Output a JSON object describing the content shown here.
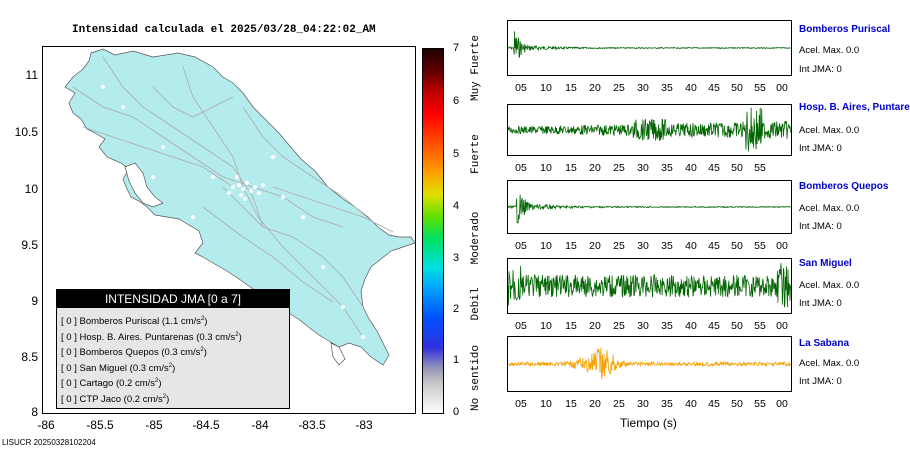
{
  "map": {
    "title": "Intensidad calculada el 2025/03/28_04:22:02_AM",
    "y_ticks": [
      "11",
      "10.5",
      "10",
      "9.5",
      "9",
      "8.5",
      "8"
    ],
    "x_ticks": [
      "-86",
      "-85.5",
      "-85",
      "-84.5",
      "-84",
      "-83.5",
      "-83"
    ],
    "land_color": "#b4ecee"
  },
  "legend": {
    "title": "INTENSIDAD JMA [0 a 7]",
    "unit": "cm/s",
    "unit_exp": "2",
    "rows": [
      {
        "prefix": "[ 0 ]",
        "station": "Bomberos Puriscal",
        "value": "(1.1"
      },
      {
        "prefix": "[ 0 ]",
        "station": "Hosp. B. Aires. Puntarenas",
        "value": "(0.3"
      },
      {
        "prefix": "[ 0 ]",
        "station": "Bomberos Quepos",
        "value": "(0.3"
      },
      {
        "prefix": "[ 0 ]",
        "station": "San Miguel",
        "value": "(0.3"
      },
      {
        "prefix": "[ 0 ]",
        "station": "Cartago",
        "value": "(0.2"
      },
      {
        "prefix": "[ 0 ]",
        "station": "CTP Jaco",
        "value": "(0.2"
      }
    ]
  },
  "colorbar": {
    "numbers": [
      "7",
      "6",
      "5",
      "4",
      "3",
      "2",
      "1",
      "0"
    ],
    "labels": [
      "Muy Fuerte",
      "Fuerte",
      "Moderado",
      "Debil",
      "No sentido"
    ]
  },
  "traces": {
    "tick_labels": [
      "05",
      "10",
      "15",
      "20",
      "25",
      "30",
      "35",
      "40",
      "45",
      "50",
      "55",
      "00"
    ],
    "tick_labels_alt": [
      "05",
      "10",
      "15",
      "20",
      "25",
      "30",
      "35",
      "40",
      "45",
      "50",
      "55"
    ],
    "x_axis_label": "Tiempo (s)",
    "stations": [
      {
        "name": "Bomberos Puriscal",
        "accel": "Acel. Max. 0.0",
        "jma": "Int JMA: 0",
        "color": "#006400"
      },
      {
        "name": "Hosp. B. Aires, Puntarenas",
        "accel": "Acel. Max. 0.0",
        "jma": "Int JMA: 0",
        "color": "#006400"
      },
      {
        "name": "Bomberos Quepos",
        "accel": "Acel. Max. 0.0",
        "jma": "Int JMA: 0",
        "color": "#006400"
      },
      {
        "name": "San Miguel",
        "accel": "Acel. Max. 0.0",
        "jma": "Int JMA: 0",
        "color": "#006400"
      },
      {
        "name": "La Sabana",
        "accel": "Acel. Max. 0.0",
        "jma": "Int JMA: 0",
        "color": "#f5a000"
      }
    ]
  },
  "footer": "LISUCR 20250328102204"
}
